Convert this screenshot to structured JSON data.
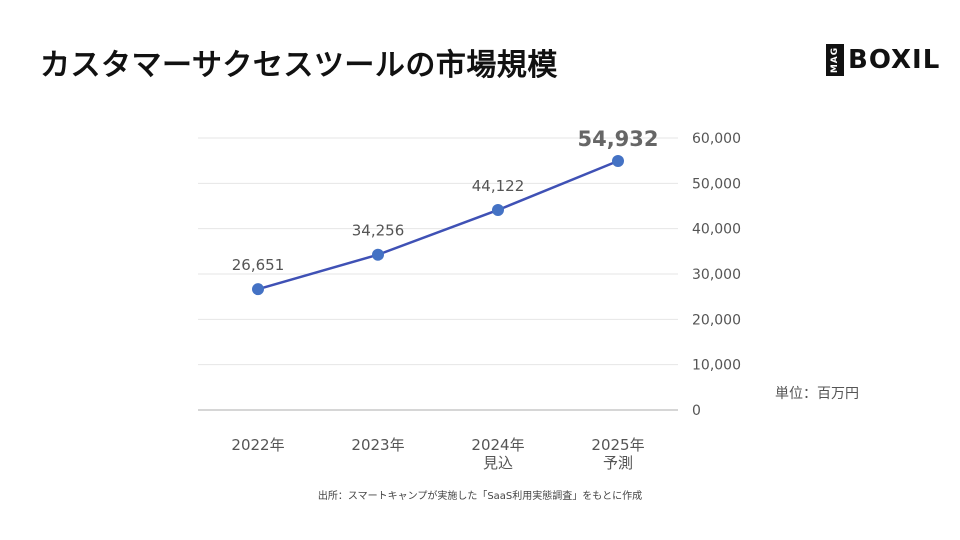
{
  "title": "カスタマーサクセスツールの市場規模",
  "logo": {
    "mag": "MAG",
    "brand": "BOXIL"
  },
  "unit_label": "単位：百万円",
  "source": "出所：スマートキャンプが実施した「SaaS利用実態調査」をもとに作成",
  "colors": {
    "line": "#3f51b5",
    "point": "#4472c4",
    "grid": "#e6e6e6",
    "axis": "#bdbdbd",
    "text": "#555555",
    "highlight": "#666666"
  },
  "chart_data": {
    "type": "line",
    "categories": [
      [
        "2022年"
      ],
      [
        "2023年"
      ],
      [
        "2024年",
        "見込"
      ],
      [
        "2025年",
        "予測"
      ]
    ],
    "values": [
      26651,
      34256,
      44122,
      54932
    ],
    "data_labels": [
      "26,651",
      "34,256",
      "44,122",
      "54,932"
    ],
    "highlight_index": 3,
    "y_axis": {
      "position": "right",
      "ticks": [
        0,
        10000,
        20000,
        30000,
        40000,
        50000,
        60000
      ],
      "tick_labels": [
        "0",
        "10,000",
        "20,000",
        "30,000",
        "40,000",
        "50,000",
        "60,000"
      ],
      "ylim": [
        0,
        60000
      ]
    },
    "grid": true,
    "legend": "none"
  }
}
